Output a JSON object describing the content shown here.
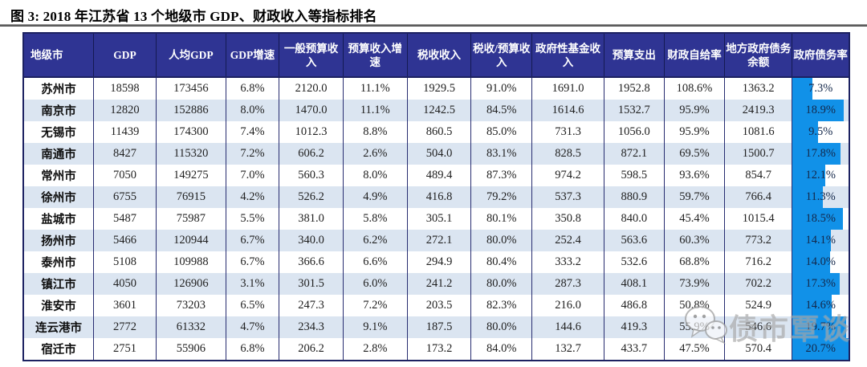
{
  "title": "图 3:  2018 年江苏省 13 个地级市 GDP、财政收入等指标排名",
  "watermark": {
    "icon": "wechat-icon",
    "text": "债市覃谈"
  },
  "colors": {
    "header_bg": "#2f3493",
    "alt_row_bg": "#dbe5f1",
    "bar_color": "#1191e8",
    "grid_line": "#272c70",
    "title_text": "#000000"
  },
  "chart_data": {
    "type": "table",
    "title": "图 3: 2018 年江苏省 13 个地级市 GDP、财政收入等指标排名",
    "columns": [
      "地级市",
      "GDP",
      "人均GDP",
      "GDP增速",
      "一般预算收入",
      "预算收入增速",
      "税收收入",
      "税收/预算收入",
      "政府性基金收入",
      "预算支出",
      "财政自给率",
      "地方政府债务余额",
      "政府债务率"
    ],
    "rows": [
      [
        "苏州市",
        "18598",
        "173456",
        "6.8%",
        "2120.0",
        "11.1%",
        "1929.5",
        "91.0%",
        "1691.0",
        "1952.8",
        "108.6%",
        "1363.2",
        "7.3%"
      ],
      [
        "南京市",
        "12820",
        "152886",
        "8.0%",
        "1470.0",
        "11.1%",
        "1242.5",
        "84.5%",
        "1614.6",
        "1532.7",
        "95.9%",
        "2419.3",
        "18.9%"
      ],
      [
        "无锡市",
        "11439",
        "174300",
        "7.4%",
        "1012.3",
        "8.8%",
        "860.5",
        "85.0%",
        "731.3",
        "1056.0",
        "95.9%",
        "1081.6",
        "9.5%"
      ],
      [
        "南通市",
        "8427",
        "115320",
        "7.2%",
        "606.2",
        "2.6%",
        "504.0",
        "83.1%",
        "828.5",
        "872.1",
        "69.5%",
        "1500.7",
        "17.8%"
      ],
      [
        "常州市",
        "7050",
        "149275",
        "7.0%",
        "560.3",
        "8.0%",
        "489.4",
        "87.3%",
        "974.2",
        "598.5",
        "93.6%",
        "854.7",
        "12.1%"
      ],
      [
        "徐州市",
        "6755",
        "76915",
        "4.2%",
        "526.2",
        "4.9%",
        "416.8",
        "79.2%",
        "537.3",
        "880.9",
        "59.7%",
        "766.4",
        "11.3%"
      ],
      [
        "盐城市",
        "5487",
        "75987",
        "5.5%",
        "381.0",
        "5.8%",
        "305.1",
        "80.1%",
        "350.8",
        "840.0",
        "45.4%",
        "1015.4",
        "18.5%"
      ],
      [
        "扬州市",
        "5466",
        "120944",
        "6.7%",
        "340.0",
        "6.2%",
        "272.1",
        "80.0%",
        "252.4",
        "563.6",
        "60.3%",
        "773.2",
        "14.1%"
      ],
      [
        "泰州市",
        "5108",
        "109988",
        "6.7%",
        "366.6",
        "6.6%",
        "294.9",
        "80.4%",
        "333.2",
        "532.6",
        "68.8%",
        "716.2",
        "14.0%"
      ],
      [
        "镇江市",
        "4050",
        "126906",
        "3.1%",
        "301.5",
        "6.0%",
        "241.2",
        "80.0%",
        "287.3",
        "408.1",
        "73.9%",
        "702.2",
        "17.3%"
      ],
      [
        "淮安市",
        "3601",
        "73203",
        "6.5%",
        "247.3",
        "7.2%",
        "203.5",
        "82.3%",
        "216.0",
        "486.8",
        "50.8%",
        "524.9",
        "14.6%"
      ],
      [
        "连云港市",
        "2772",
        "61332",
        "4.7%",
        "234.3",
        "9.1%",
        "187.5",
        "80.0%",
        "144.6",
        "419.3",
        "55.9%",
        "546.6",
        "19.7%"
      ],
      [
        "宿迁市",
        "2751",
        "55906",
        "6.8%",
        "206.2",
        "2.8%",
        "173.2",
        "84.0%",
        "132.7",
        "433.7",
        "47.5%",
        "570.4",
        "20.7%"
      ]
    ],
    "bar_column_index": 12,
    "bar_column_label": "政府债务率",
    "bar_values": [
      7.3,
      18.9,
      9.5,
      17.8,
      12.1,
      11.3,
      18.5,
      14.1,
      14.0,
      17.3,
      14.6,
      19.7,
      20.7
    ],
    "bar_scale_max": 20.7,
    "layout_hints": {
      "grid": "vertical-only",
      "alternating_rows": true,
      "bars_inline_in_last_column": true
    }
  }
}
